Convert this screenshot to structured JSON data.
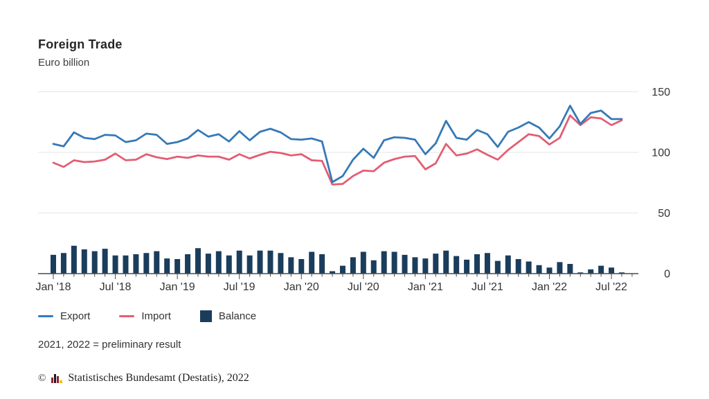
{
  "header": {
    "title": "Foreign Trade",
    "subtitle": "Euro billion"
  },
  "legend": {
    "export_label": "Export",
    "import_label": "Import",
    "balance_label": "Balance"
  },
  "note": "2021, 2022 = preliminary result",
  "footer": {
    "copyright_symbol": "©",
    "logo_icon": "destatis-bars-icon",
    "text": "Statistisches Bundesamt (Destatis), 2022"
  },
  "colors": {
    "export_line": "#3579b8",
    "import_line": "#e35d72",
    "balance_bar": "#1b3d5c",
    "gridline": "#e6e6e6",
    "axis": "#4a4a4a",
    "tick_label": "#333333",
    "logo_red": "#9e1b32",
    "logo_black": "#1a1a1a",
    "logo_yellow": "#f2c400"
  },
  "chart_data": {
    "type": "combo",
    "title": "Foreign Trade",
    "ylabel": "Euro billion",
    "x_unit": "month",
    "x_start": "2018-01",
    "x_end": "2022-08",
    "n_points": 56,
    "x_tick_labels": [
      "Jan '18",
      "Jul '18",
      "Jan '19",
      "Jul '19",
      "Jan '20",
      "Jul '20",
      "Jan '21",
      "Jul '21",
      "Jan '22",
      "Jul '22"
    ],
    "x_tick_indices": [
      0,
      6,
      12,
      18,
      24,
      30,
      36,
      42,
      48,
      54
    ],
    "ylim": [
      0,
      160
    ],
    "y_ticks": [
      0,
      50,
      100,
      150
    ],
    "y_axis_side": "right",
    "grid": "horizontal",
    "legend_position": "bottom-left",
    "series": [
      {
        "name": "Export",
        "type": "line",
        "color": "#3579b8",
        "values": [
          107,
          105,
          116.5,
          112,
          111,
          114.5,
          114,
          108.5,
          110,
          115.5,
          114.5,
          107,
          108.5,
          111.5,
          118.5,
          113,
          115,
          109,
          117.5,
          110,
          117,
          119.5,
          116.5,
          111,
          110.5,
          111.5,
          109,
          75.5,
          80.5,
          94,
          103,
          95.5,
          110,
          112.5,
          112,
          110.5,
          98.5,
          107.5,
          126,
          112,
          110.5,
          118.5,
          115,
          104.5,
          117,
          120.5,
          125,
          120.5,
          111.5,
          121.5,
          138.5,
          123.5,
          132.5,
          134.5,
          127.5,
          127.5
        ]
      },
      {
        "name": "Import",
        "type": "line",
        "color": "#e35d72",
        "values": [
          91.5,
          88,
          93.5,
          92,
          92.5,
          94,
          99,
          93.5,
          94,
          98.5,
          96,
          94.5,
          96.5,
          95.5,
          97.5,
          96.5,
          96.5,
          94,
          98.5,
          95,
          98,
          100.5,
          99.5,
          97.5,
          98.5,
          93.5,
          93,
          73.5,
          74,
          80.5,
          85,
          84.5,
          91.5,
          94.5,
          96.5,
          97,
          86,
          91,
          107,
          97.5,
          99,
          102.5,
          98,
          94,
          102,
          108.5,
          115,
          113.5,
          106.5,
          112,
          130.5,
          122.5,
          129,
          128,
          122.5,
          126.5
        ]
      },
      {
        "name": "Balance",
        "type": "bar",
        "color": "#1b3d5c",
        "values": [
          15.5,
          17,
          23,
          20,
          18.5,
          20.5,
          15,
          15,
          16,
          17,
          18.5,
          12.5,
          12,
          16,
          21,
          16.5,
          18.5,
          15,
          19,
          15,
          19,
          19,
          17,
          13.5,
          12,
          18,
          16,
          2,
          6.5,
          13.5,
          18,
          11,
          18.5,
          18,
          15.5,
          13.5,
          12.5,
          16.5,
          19,
          14.5,
          11.5,
          16,
          17,
          10.5,
          15,
          12,
          10,
          7,
          5,
          9.5,
          8,
          1,
          3.5,
          6.5,
          5,
          1
        ]
      }
    ]
  }
}
